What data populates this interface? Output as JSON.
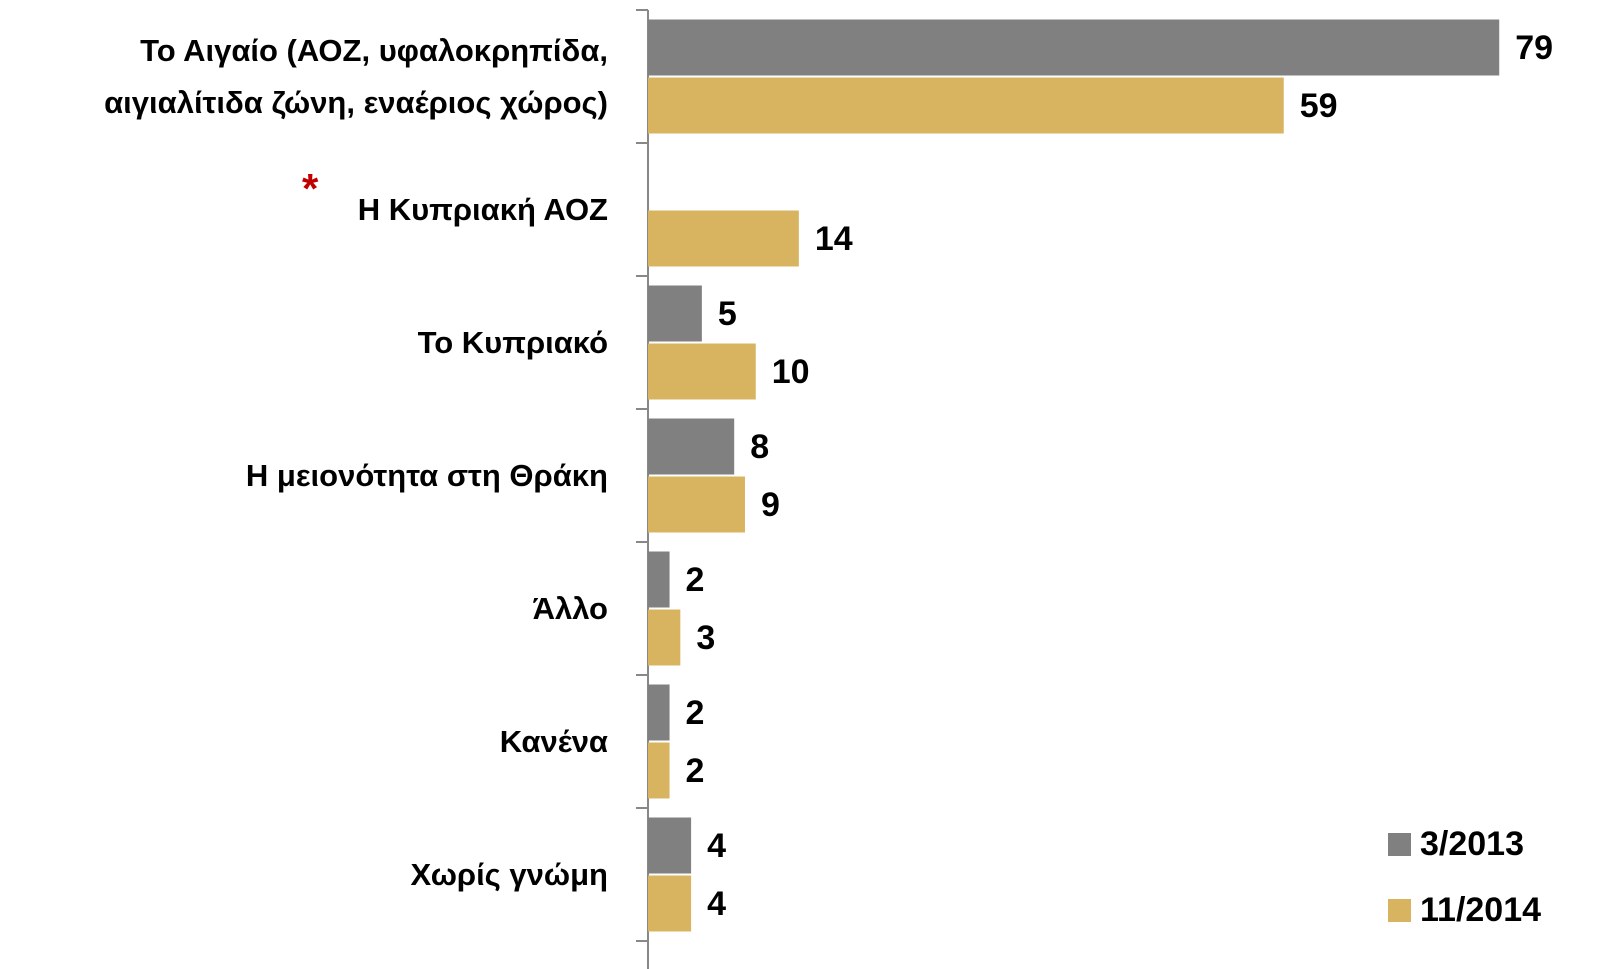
{
  "chart_data": {
    "type": "bar",
    "orientation": "horizontal",
    "categories": [
      "Το Αιγαίο (ΑΟΖ, υφαλοκρηπίδα, αιγιαλίτιδα ζώνη, εναέριος χώρος)",
      "Η Κυπριακή ΑΟΖ",
      "Το Κυπριακό",
      "Η μειονότητα στη Θράκη",
      "Άλλο",
      "Κανένα",
      "Χωρίς γνώμη"
    ],
    "series": [
      {
        "name": "3/2013",
        "color": "#808080",
        "values": [
          79,
          null,
          5,
          8,
          2,
          2,
          4
        ]
      },
      {
        "name": "11/2014",
        "color": "#d8b460",
        "values": [
          59,
          14,
          10,
          9,
          3,
          2,
          4
        ]
      }
    ],
    "annotation": "*",
    "xlim": [
      0,
      80
    ],
    "legend": "lower right"
  }
}
